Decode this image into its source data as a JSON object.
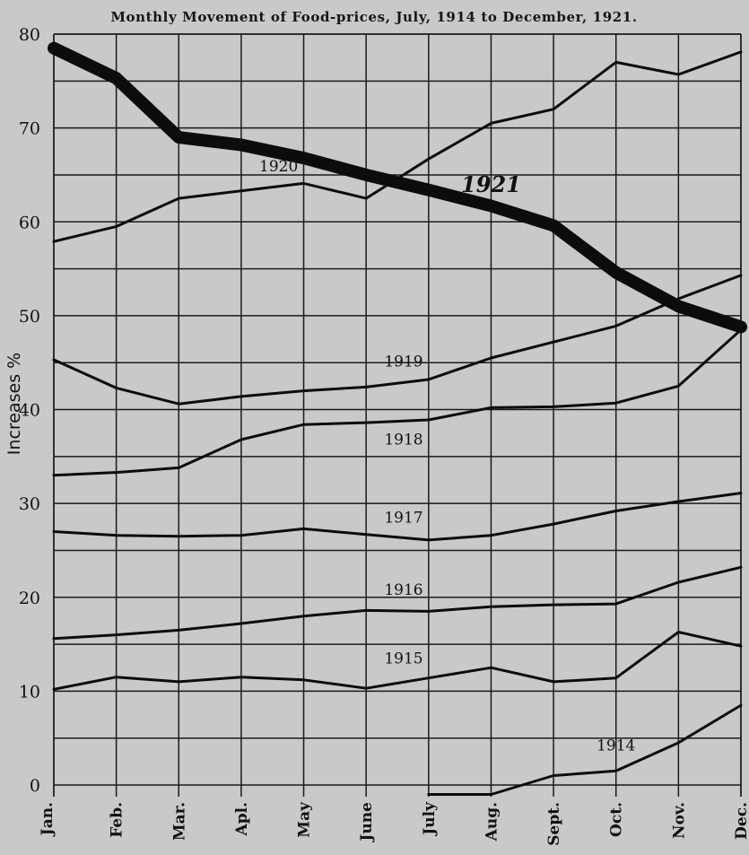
{
  "chart_data": {
    "type": "line",
    "title": "Monthly Movement of Food-prices, July, 1914 to December, 1921.",
    "ylabel": "Increases %",
    "xlabel": "",
    "categories": [
      "Jan.",
      "Feb.",
      "Mar.",
      "Apl.",
      "May",
      "June",
      "July",
      "Aug.",
      "Sept.",
      "Oct.",
      "Nov.",
      "Dec."
    ],
    "ylim": [
      0,
      80
    ],
    "yticks": [
      0,
      10,
      20,
      30,
      40,
      50,
      60,
      70,
      80
    ],
    "grid": true,
    "series": [
      {
        "name": "1914",
        "values": [
          null,
          null,
          null,
          null,
          null,
          null,
          -1,
          -1,
          1,
          1.5,
          4.5,
          8.5
        ]
      },
      {
        "name": "1915",
        "values": [
          10.2,
          11.5,
          11,
          11.5,
          11.2,
          10.3,
          11.4,
          12.5,
          11,
          11.4,
          16.3,
          14.8
        ]
      },
      {
        "name": "1916",
        "values": [
          15.6,
          16,
          16.5,
          17.2,
          18,
          18.6,
          18.5,
          19,
          19.2,
          19.3,
          21.6,
          23.2
        ]
      },
      {
        "name": "1917",
        "values": [
          27,
          26.6,
          26.5,
          26.6,
          27.3,
          26.7,
          26.1,
          26.6,
          27.8,
          29.2,
          30.2,
          31.1
        ]
      },
      {
        "name": "1918",
        "values": [
          33,
          33.3,
          33.8,
          36.8,
          38.4,
          38.6,
          38.9,
          40.2,
          40.3,
          40.7,
          42.5,
          48.5
        ]
      },
      {
        "name": "1919",
        "values": [
          45.3,
          42.3,
          40.6,
          41.4,
          42,
          42.4,
          43.2,
          45.5,
          47.2,
          48.9,
          51.8,
          54.3
        ]
      },
      {
        "name": "1920",
        "values": [
          57.9,
          59.5,
          62.5,
          63.3,
          64.1,
          62.5,
          66.7,
          70.5,
          72,
          77,
          75.7,
          78.1
        ]
      },
      {
        "name": "1921",
        "values": [
          78.5,
          75.3,
          69,
          68.2,
          66.8,
          65,
          63.4,
          61.7,
          59.6,
          54.6,
          51,
          48.8
        ]
      }
    ],
    "series_labels": [
      "1914",
      "1915",
      "1916",
      "1917",
      "1918",
      "1919",
      "1920",
      "1921"
    ]
  }
}
